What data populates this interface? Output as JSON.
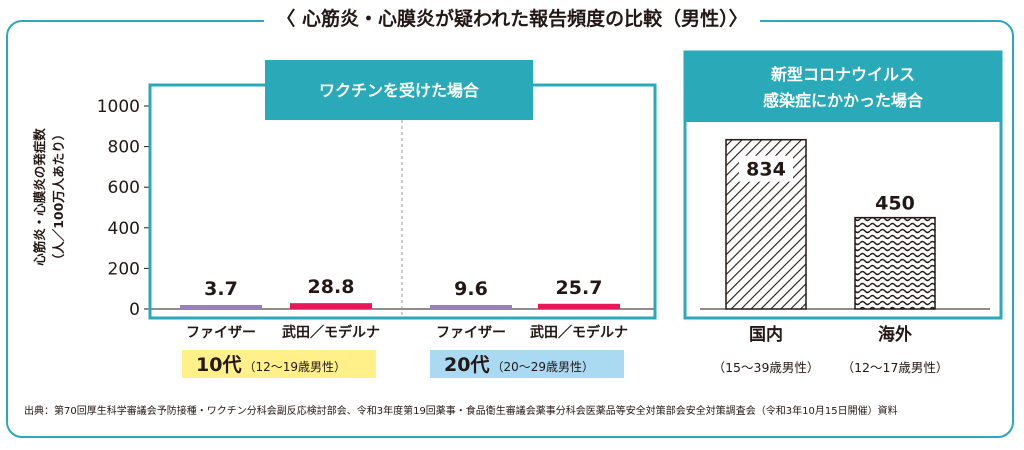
{
  "title": "〈 心筋炎・心膜炎が疑われた報告頻度の比較（男性）〉",
  "chart_data": {
    "type": "bar",
    "ylabel_line1": "心筋炎・心膜炎の発症数",
    "ylabel_line2": "（人／100万人あたり）",
    "ylim": [
      0,
      1000
    ],
    "yticks": [
      "0",
      "200",
      "400",
      "600",
      "800",
      "1000"
    ],
    "vaccine_panel_title": "ワクチンを受けた場合",
    "infection_panel_title_line1": "新型コロナウイルス",
    "infection_panel_title_line2": "感染症にかかった場合",
    "vaccine_bars": [
      {
        "category": "ファイザー",
        "value": 3.7,
        "label": "3.7",
        "color": "#9b7fc1"
      },
      {
        "category": "武田／モデルナ",
        "value": 28.8,
        "label": "28.8",
        "color": "#e5195a"
      },
      {
        "category": "ファイザー",
        "value": 9.6,
        "label": "9.6",
        "color": "#9b7fc1"
      },
      {
        "category": "武田／モデルナ",
        "value": 25.7,
        "label": "25.7",
        "color": "#e5195a"
      }
    ],
    "age_groups": [
      {
        "main": "10代",
        "sub": "（12～19歳男性）",
        "bg": "#fff08a"
      },
      {
        "main": "20代",
        "sub": "（20～29歳男性）",
        "bg": "#a9daf2"
      }
    ],
    "infection_bars": [
      {
        "category": "国内",
        "value": 834,
        "label": "834",
        "note": "（15～39歳男性）"
      },
      {
        "category": "海外",
        "value": 450,
        "label": "450",
        "note": "（12～17歳男性）"
      }
    ],
    "accent_color": "#2aa9b9"
  },
  "footnote": "出典：第70回厚生科学審議会予防接種・ワクチン分科会副反応検討部会、令和3年度第19回薬事・食品衛生審議会薬事分科会医薬品等安全対策部会安全対策調査会（令和3年10月15日開催）資料"
}
